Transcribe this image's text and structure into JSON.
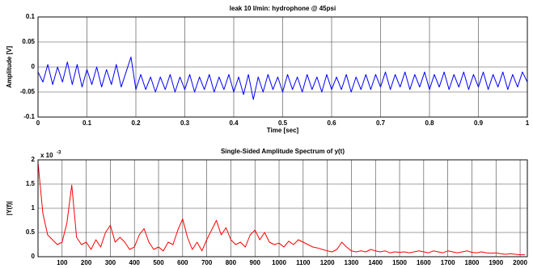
{
  "chart_data": [
    {
      "type": "line",
      "title": "leak 10 l/min: hydrophone @ 45psi",
      "x_label": "Time [sec]",
      "y_label": "Amplitude [V]",
      "xlim": [
        0,
        1
      ],
      "ylim": [
        -0.1,
        0.1
      ],
      "xticks": [
        0,
        0.1,
        0.2,
        0.3,
        0.4,
        0.5,
        0.6,
        0.7,
        0.8,
        0.9,
        1
      ],
      "yticks": [
        -0.1,
        -0.05,
        0,
        0.05,
        0.1
      ],
      "grid": true,
      "series": [
        {
          "color": "#0000ff",
          "x": [
            0,
            0.01,
            0.02,
            0.03,
            0.04,
            0.05,
            0.06,
            0.07,
            0.08,
            0.09,
            0.1,
            0.11,
            0.12,
            0.13,
            0.14,
            0.15,
            0.16,
            0.17,
            0.18,
            0.19,
            0.2,
            0.21,
            0.22,
            0.23,
            0.24,
            0.25,
            0.26,
            0.27,
            0.28,
            0.29,
            0.3,
            0.31,
            0.32,
            0.33,
            0.34,
            0.35,
            0.36,
            0.37,
            0.38,
            0.39,
            0.4,
            0.41,
            0.42,
            0.43,
            0.44,
            0.45,
            0.46,
            0.47,
            0.48,
            0.49,
            0.5,
            0.51,
            0.52,
            0.53,
            0.54,
            0.55,
            0.56,
            0.57,
            0.58,
            0.59,
            0.6,
            0.61,
            0.62,
            0.63,
            0.64,
            0.65,
            0.66,
            0.67,
            0.68,
            0.69,
            0.7,
            0.71,
            0.72,
            0.73,
            0.74,
            0.75,
            0.76,
            0.77,
            0.78,
            0.79,
            0.8,
            0.81,
            0.82,
            0.83,
            0.84,
            0.85,
            0.86,
            0.87,
            0.88,
            0.89,
            0.9,
            0.91,
            0.92,
            0.93,
            0.94,
            0.95,
            0.96,
            0.97,
            0.98,
            0.99,
            1
          ],
          "values": [
            -0.01,
            -0.03,
            0.005,
            -0.035,
            0.0,
            -0.03,
            0.01,
            -0.035,
            0.005,
            -0.04,
            -0.005,
            -0.035,
            0.0,
            -0.04,
            -0.005,
            -0.035,
            0.005,
            -0.04,
            -0.01,
            0.02,
            -0.045,
            -0.015,
            -0.045,
            -0.02,
            -0.05,
            -0.02,
            -0.045,
            -0.015,
            -0.05,
            -0.02,
            -0.045,
            -0.015,
            -0.05,
            -0.02,
            -0.045,
            -0.015,
            -0.05,
            -0.02,
            -0.045,
            -0.015,
            -0.05,
            -0.02,
            -0.055,
            -0.015,
            -0.065,
            -0.02,
            -0.05,
            -0.015,
            -0.045,
            -0.02,
            -0.05,
            -0.015,
            -0.045,
            -0.02,
            -0.05,
            -0.015,
            -0.045,
            -0.02,
            -0.05,
            -0.015,
            -0.045,
            -0.02,
            -0.045,
            -0.015,
            -0.05,
            -0.02,
            -0.045,
            -0.015,
            -0.045,
            -0.015,
            -0.04,
            -0.01,
            -0.045,
            -0.015,
            -0.04,
            -0.01,
            -0.045,
            -0.015,
            -0.04,
            -0.01,
            -0.045,
            -0.015,
            -0.04,
            -0.01,
            -0.045,
            -0.015,
            -0.04,
            -0.01,
            -0.045,
            -0.015,
            -0.04,
            -0.01,
            -0.045,
            -0.015,
            -0.04,
            -0.01,
            -0.045,
            -0.015,
            -0.04,
            -0.01,
            -0.03
          ]
        }
      ]
    },
    {
      "type": "line",
      "title": "Single-Sided Amplitude Spectrum of y(t)",
      "y_label": "|Y(f)|",
      "multiplier": {
        "base": "x 10",
        "exponent": "-3"
      },
      "xlim": [
        0,
        2030
      ],
      "ylim": [
        0,
        2
      ],
      "xticks": [
        100,
        200,
        300,
        400,
        500,
        600,
        700,
        800,
        900,
        1000,
        1100,
        1200,
        1300,
        1400,
        1500,
        1600,
        1700,
        1800,
        1900,
        2000
      ],
      "yticks": [
        0,
        0.5,
        1,
        1.5,
        2
      ],
      "grid": true,
      "series": [
        {
          "color": "#ff0000",
          "x": [
            0,
            20,
            40,
            60,
            80,
            100,
            120,
            140,
            160,
            180,
            200,
            220,
            240,
            260,
            280,
            300,
            320,
            340,
            360,
            380,
            400,
            420,
            440,
            460,
            480,
            500,
            520,
            540,
            560,
            580,
            600,
            620,
            640,
            660,
            680,
            700,
            720,
            740,
            760,
            780,
            800,
            820,
            840,
            860,
            880,
            900,
            920,
            940,
            960,
            980,
            1000,
            1020,
            1040,
            1060,
            1080,
            1100,
            1120,
            1140,
            1160,
            1180,
            1200,
            1220,
            1240,
            1260,
            1280,
            1300,
            1320,
            1340,
            1360,
            1380,
            1400,
            1420,
            1440,
            1460,
            1480,
            1500,
            1520,
            1540,
            1560,
            1580,
            1600,
            1620,
            1640,
            1660,
            1680,
            1700,
            1720,
            1740,
            1760,
            1780,
            1800,
            1820,
            1840,
            1860,
            1880,
            1900,
            1920,
            1940,
            1960,
            1980,
            2000,
            2020
          ],
          "values": [
            1.95,
            0.9,
            0.45,
            0.35,
            0.25,
            0.3,
            0.7,
            1.48,
            0.4,
            0.25,
            0.3,
            0.15,
            0.35,
            0.2,
            0.5,
            0.65,
            0.3,
            0.4,
            0.3,
            0.15,
            0.2,
            0.45,
            0.58,
            0.3,
            0.15,
            0.2,
            0.12,
            0.3,
            0.25,
            0.55,
            0.78,
            0.4,
            0.15,
            0.3,
            0.12,
            0.35,
            0.55,
            0.75,
            0.45,
            0.6,
            0.35,
            0.25,
            0.3,
            0.2,
            0.45,
            0.55,
            0.35,
            0.5,
            0.3,
            0.25,
            0.28,
            0.2,
            0.32,
            0.25,
            0.35,
            0.3,
            0.25,
            0.2,
            0.18,
            0.15,
            0.12,
            0.1,
            0.15,
            0.3,
            0.2,
            0.12,
            0.1,
            0.12,
            0.1,
            0.15,
            0.12,
            0.1,
            0.12,
            0.08,
            0.1,
            0.09,
            0.1,
            0.08,
            0.1,
            0.12,
            0.1,
            0.08,
            0.12,
            0.1,
            0.08,
            0.12,
            0.1,
            0.08,
            0.1,
            0.12,
            0.09,
            0.08,
            0.1,
            0.08,
            0.07,
            0.08,
            0.06,
            0.05,
            0.06,
            0.05,
            0.04,
            0.04
          ]
        }
      ]
    }
  ]
}
